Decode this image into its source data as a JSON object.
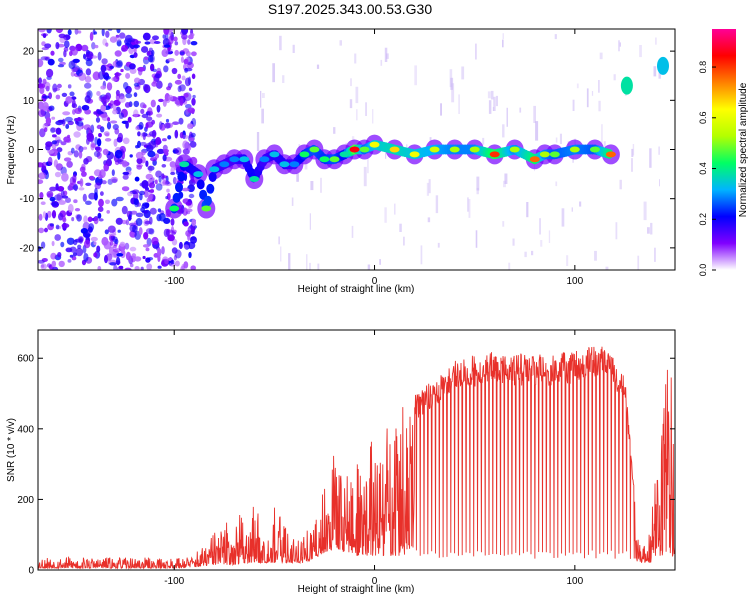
{
  "figure_title": "S197.2025.343.00.53.G30",
  "chart_data": [
    {
      "type": "heatmap",
      "title": "S197.2025.343.00.53.G30",
      "xlabel": "Height of straight line (km)",
      "ylabel": "Frequency (Hz)",
      "xlim": [
        -168,
        150
      ],
      "ylim": [
        -24.5,
        24.5
      ],
      "x_ticks": [
        -100,
        0,
        100
      ],
      "x_tick_labels": [
        "-100",
        "0",
        "100"
      ],
      "y_ticks": [
        -20,
        -10,
        0,
        10,
        20
      ],
      "y_tick_labels": [
        "-20",
        "-10",
        "0",
        "10",
        "20"
      ],
      "colorbar": {
        "label": "Normalized spectral amplitude",
        "range": [
          0,
          0.95
        ],
        "ticks": [
          0,
          0.2,
          0.4,
          0.6,
          0.8
        ],
        "tick_labels": [
          "0.0",
          "0.2",
          "0.4",
          "0.6",
          "0.8"
        ],
        "colormap": [
          "#ffffff",
          "#8000ff",
          "#0000ff",
          "#00b4ff",
          "#00ff64",
          "#b4ff00",
          "#ffff00",
          "#ff8000",
          "#ff0000",
          "#ff0096"
        ]
      },
      "noise_region_x": [
        -168,
        -90
      ],
      "ridge": {
        "x": [
          -100,
          -95,
          -88,
          -84,
          -80,
          -75,
          -70,
          -65,
          -60,
          -55,
          -50,
          -45,
          -40,
          -35,
          -30,
          -25,
          -20,
          -15,
          -10,
          -5,
          0,
          10,
          20,
          30,
          40,
          50,
          60,
          70,
          80,
          85,
          90,
          100,
          110,
          118
        ],
        "frequency": [
          -12,
          -3,
          -5,
          -12,
          -4,
          -3,
          -2,
          -2,
          -6,
          -2,
          -1,
          -3,
          -3,
          -1,
          0,
          -2,
          -2,
          -1,
          0,
          0,
          1,
          0,
          -1,
          0,
          0,
          0,
          -1,
          0,
          -2,
          -1,
          -1,
          0,
          0,
          -1
        ],
        "amplitude": [
          0.45,
          0.4,
          0.35,
          0.5,
          0.35,
          0.3,
          0.3,
          0.35,
          0.4,
          0.3,
          0.35,
          0.35,
          0.3,
          0.45,
          0.5,
          0.45,
          0.5,
          0.4,
          0.9,
          0.5,
          0.65,
          0.7,
          0.65,
          0.6,
          0.55,
          0.55,
          0.85,
          0.55,
          0.8,
          0.55,
          0.5,
          0.55,
          0.5,
          0.8
        ]
      },
      "high_freq_patches": [
        {
          "x": 126,
          "frequency": 13,
          "amplitude": 0.4
        },
        {
          "x": 144,
          "frequency": 17,
          "amplitude": 0.35
        }
      ]
    },
    {
      "type": "line",
      "xlabel": "Height of straight line (km)",
      "ylabel": "SNR (10 * v/v)",
      "xlim": [
        -168,
        150
      ],
      "ylim": [
        0,
        680
      ],
      "x_ticks": [
        -100,
        0,
        100
      ],
      "x_tick_labels": [
        "-100",
        "0",
        "100"
      ],
      "y_ticks": [
        0,
        200,
        400,
        600
      ],
      "y_tick_labels": [
        "0",
        "200",
        "400",
        "600"
      ],
      "color": "#e8302a",
      "envelope": {
        "x": [
          -168,
          -120,
          -100,
          -90,
          -85,
          -80,
          -70,
          -60,
          -55,
          -50,
          -45,
          -40,
          -35,
          -30,
          -25,
          -20,
          -15,
          -10,
          -5,
          0,
          5,
          10,
          15,
          20,
          25,
          30,
          35,
          40,
          60,
          80,
          100,
          110,
          115,
          120,
          125,
          130,
          132,
          135,
          138,
          140,
          143,
          146,
          150
        ],
        "peak": [
          40,
          35,
          35,
          45,
          70,
          110,
          150,
          200,
          120,
          180,
          140,
          100,
          110,
          130,
          240,
          350,
          320,
          300,
          330,
          390,
          420,
          450,
          480,
          500,
          520,
          540,
          560,
          600,
          620,
          610,
          620,
          640,
          630,
          600,
          560,
          200,
          100,
          80,
          120,
          330,
          450,
          600,
          620
        ],
        "base": [
          5,
          5,
          5,
          8,
          10,
          15,
          15,
          20,
          20,
          20,
          20,
          20,
          20,
          30,
          50,
          60,
          50,
          40,
          40,
          40,
          40,
          40,
          40,
          40,
          40,
          40,
          40,
          40,
          40,
          40,
          40,
          40,
          40,
          40,
          40,
          30,
          20,
          20,
          20,
          40,
          40,
          40,
          40
        ]
      }
    }
  ]
}
